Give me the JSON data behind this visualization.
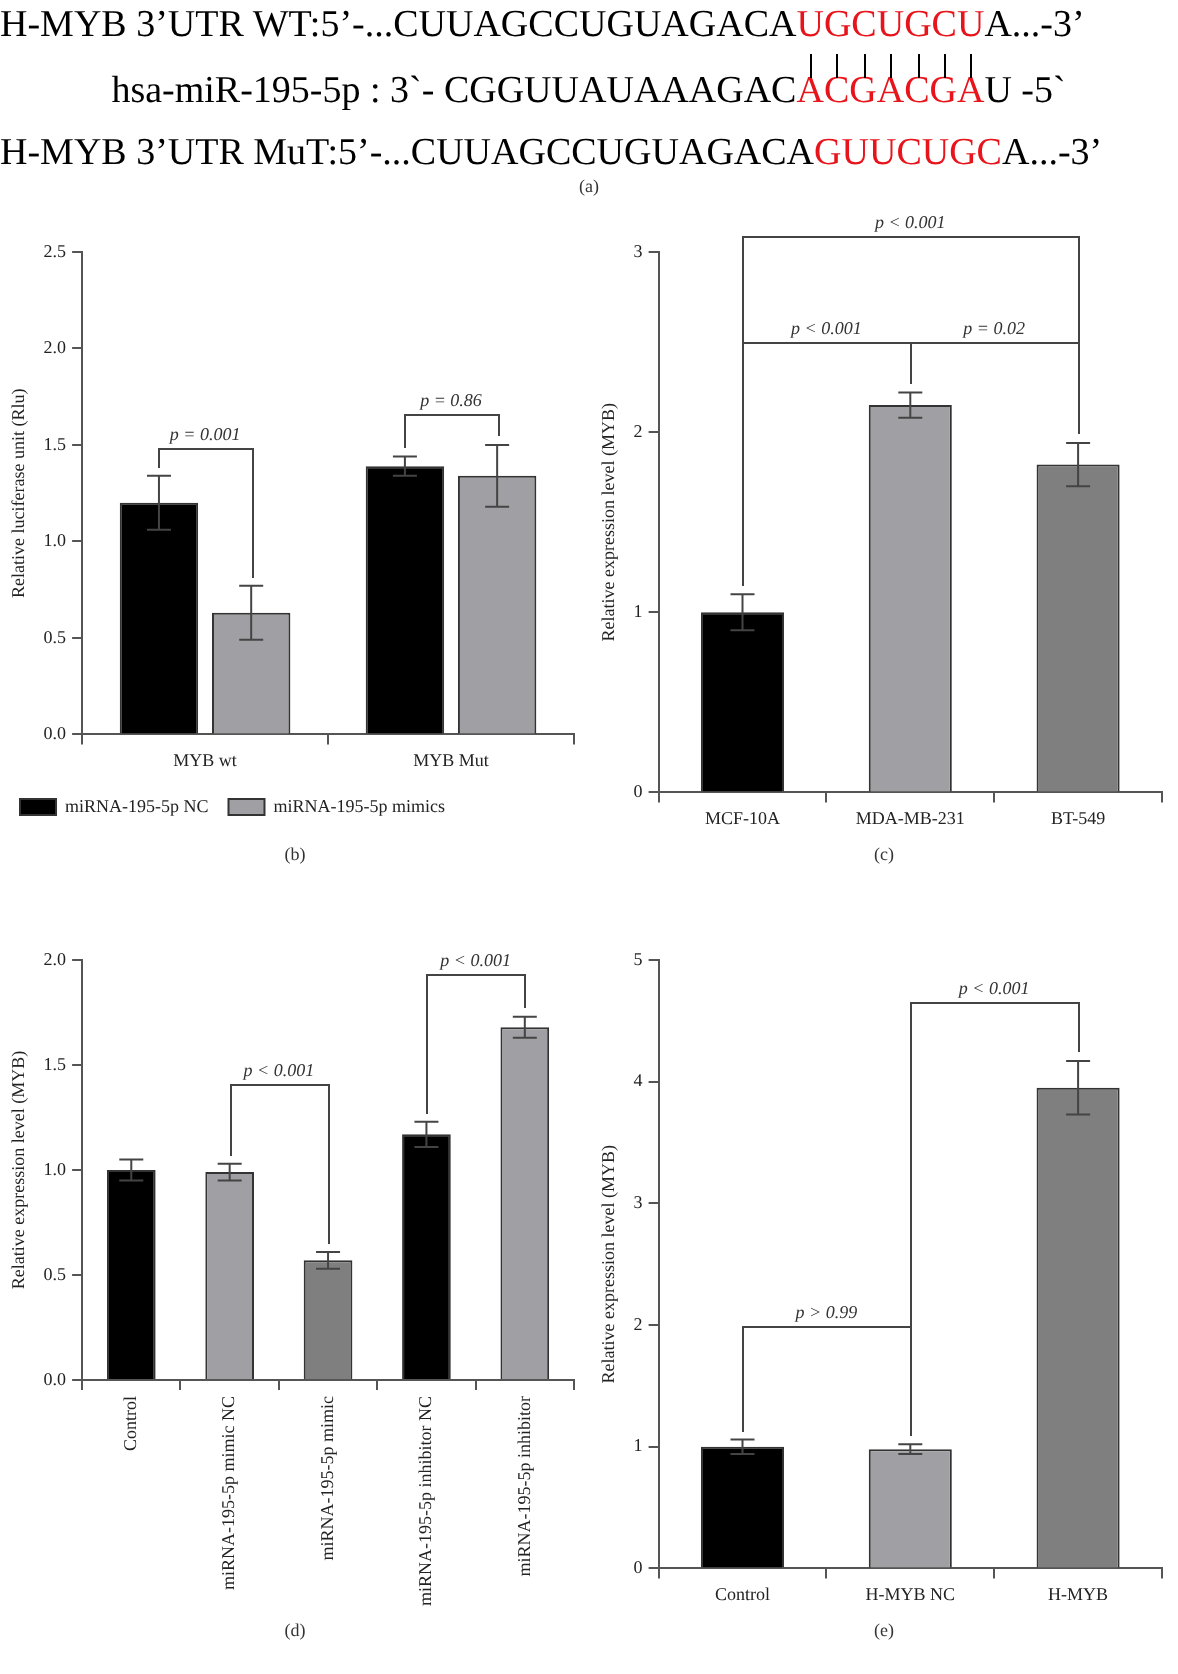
{
  "chart_data": [
    {
      "type": "other",
      "annotations": [
        "H-MYB 3’UTR WT:5’-...CUUAGCCUGUAGACAUGCUGCUA...-3’",
        "hsa-miR-195-5p : 3`- CGGUUAUAAAGACACGACGAU -5`",
        "H-MYB 3’UTR MuT:5’-...CUUAGCCUGUAGACAGUUCUGCA...-3’",
        "(a)"
      ]
    },
    {
      "type": "bar",
      "categories": [
        "MYB wt",
        "MYB Mut"
      ],
      "ylabel": "Relative luciferase unit (Rlu)",
      "ylim": [
        0,
        2.5
      ],
      "yticks": [
        {
          "value": 0,
          "label": "0.0"
        },
        {
          "value": 0.5,
          "label": "0.5"
        },
        {
          "value": 1,
          "label": "1.0"
        },
        {
          "value": 1.5,
          "label": "1.5"
        },
        {
          "value": 2,
          "label": "2.0"
        },
        {
          "value": 2.5,
          "label": "2.5"
        }
      ],
      "series": [
        {
          "name": "miRNA-195-5p NC",
          "color": "#000000",
          "values": [
            1.2,
            1.39
          ],
          "errors": [
            0.14,
            0.05
          ]
        },
        {
          "name": "miRNA-195-5p mimics",
          "color": "#a0a0a4",
          "values": [
            0.63,
            1.34
          ],
          "errors": [
            0.14,
            0.16
          ]
        }
      ],
      "legend": "bottom",
      "annotations": [
        "p = 0.001",
        "p = 0.86",
        "(b)"
      ]
    },
    {
      "type": "bar",
      "categories": [
        "MCF-10A",
        "MDA-MB-231",
        "BT-549"
      ],
      "ylabel": "Relative expression level (MYB)",
      "ylim": [
        0,
        3
      ],
      "yticks": [
        0,
        1,
        2,
        3
      ],
      "values": [
        1.0,
        2.15,
        1.82
      ],
      "errors": [
        0.1,
        0.07,
        0.12
      ],
      "colors": [
        "#000000",
        "#a0a0a4",
        "#7f7f7f"
      ],
      "annotations": [
        "p < 0.001",
        "p < 0.001",
        "p = 0.02",
        "(c)"
      ]
    },
    {
      "type": "bar",
      "categories": [
        "Control",
        "miRNA-195-5p mimic NC",
        "miRNA-195-5p mimic",
        "miRNA-195-5p inhibitor NC",
        "miRNA-195-5p inhibitor"
      ],
      "ylabel": "Relative expression level (MYB)",
      "ylim": [
        0,
        2
      ],
      "yticks": [
        {
          "value": 0,
          "label": "0.0"
        },
        {
          "value": 0.5,
          "label": "0.5"
        },
        {
          "value": 1,
          "label": "1.0"
        },
        {
          "value": 1.5,
          "label": "1.5"
        },
        {
          "value": 2,
          "label": "2.0"
        }
      ],
      "values": [
        1.0,
        0.99,
        0.57,
        1.17,
        1.68
      ],
      "errors": [
        0.05,
        0.04,
        0.04,
        0.06,
        0.05
      ],
      "colors": [
        "#000000",
        "#a0a0a4",
        "#7f7f7f",
        "#000000",
        "#a0a0a4"
      ],
      "annotations": [
        "p < 0.001",
        "p < 0.001",
        "(d)"
      ]
    },
    {
      "type": "bar",
      "categories": [
        "Control",
        "H-MYB NC",
        "H-MYB"
      ],
      "ylabel": "Relative expression level (MYB)",
      "ylim": [
        0,
        5
      ],
      "yticks": [
        0,
        1,
        2,
        3,
        4,
        5
      ],
      "values": [
        1.0,
        0.98,
        3.95
      ],
      "errors": [
        0.06,
        0.04,
        0.22
      ],
      "colors": [
        "#000000",
        "#a0a0a4",
        "#7f7f7f"
      ],
      "annotations": [
        "p > 0.99",
        "p < 0.001",
        "(e)"
      ]
    }
  ]
}
